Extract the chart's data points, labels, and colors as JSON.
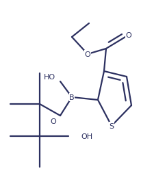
{
  "bg_color": "#ffffff",
  "line_color": "#2c3060",
  "line_width": 1.6,
  "font_size": 8.0,
  "fig_width": 2.07,
  "fig_height": 2.51,
  "dpi": 100,
  "xlim": [
    0,
    207
  ],
  "ylim": [
    0,
    251
  ]
}
